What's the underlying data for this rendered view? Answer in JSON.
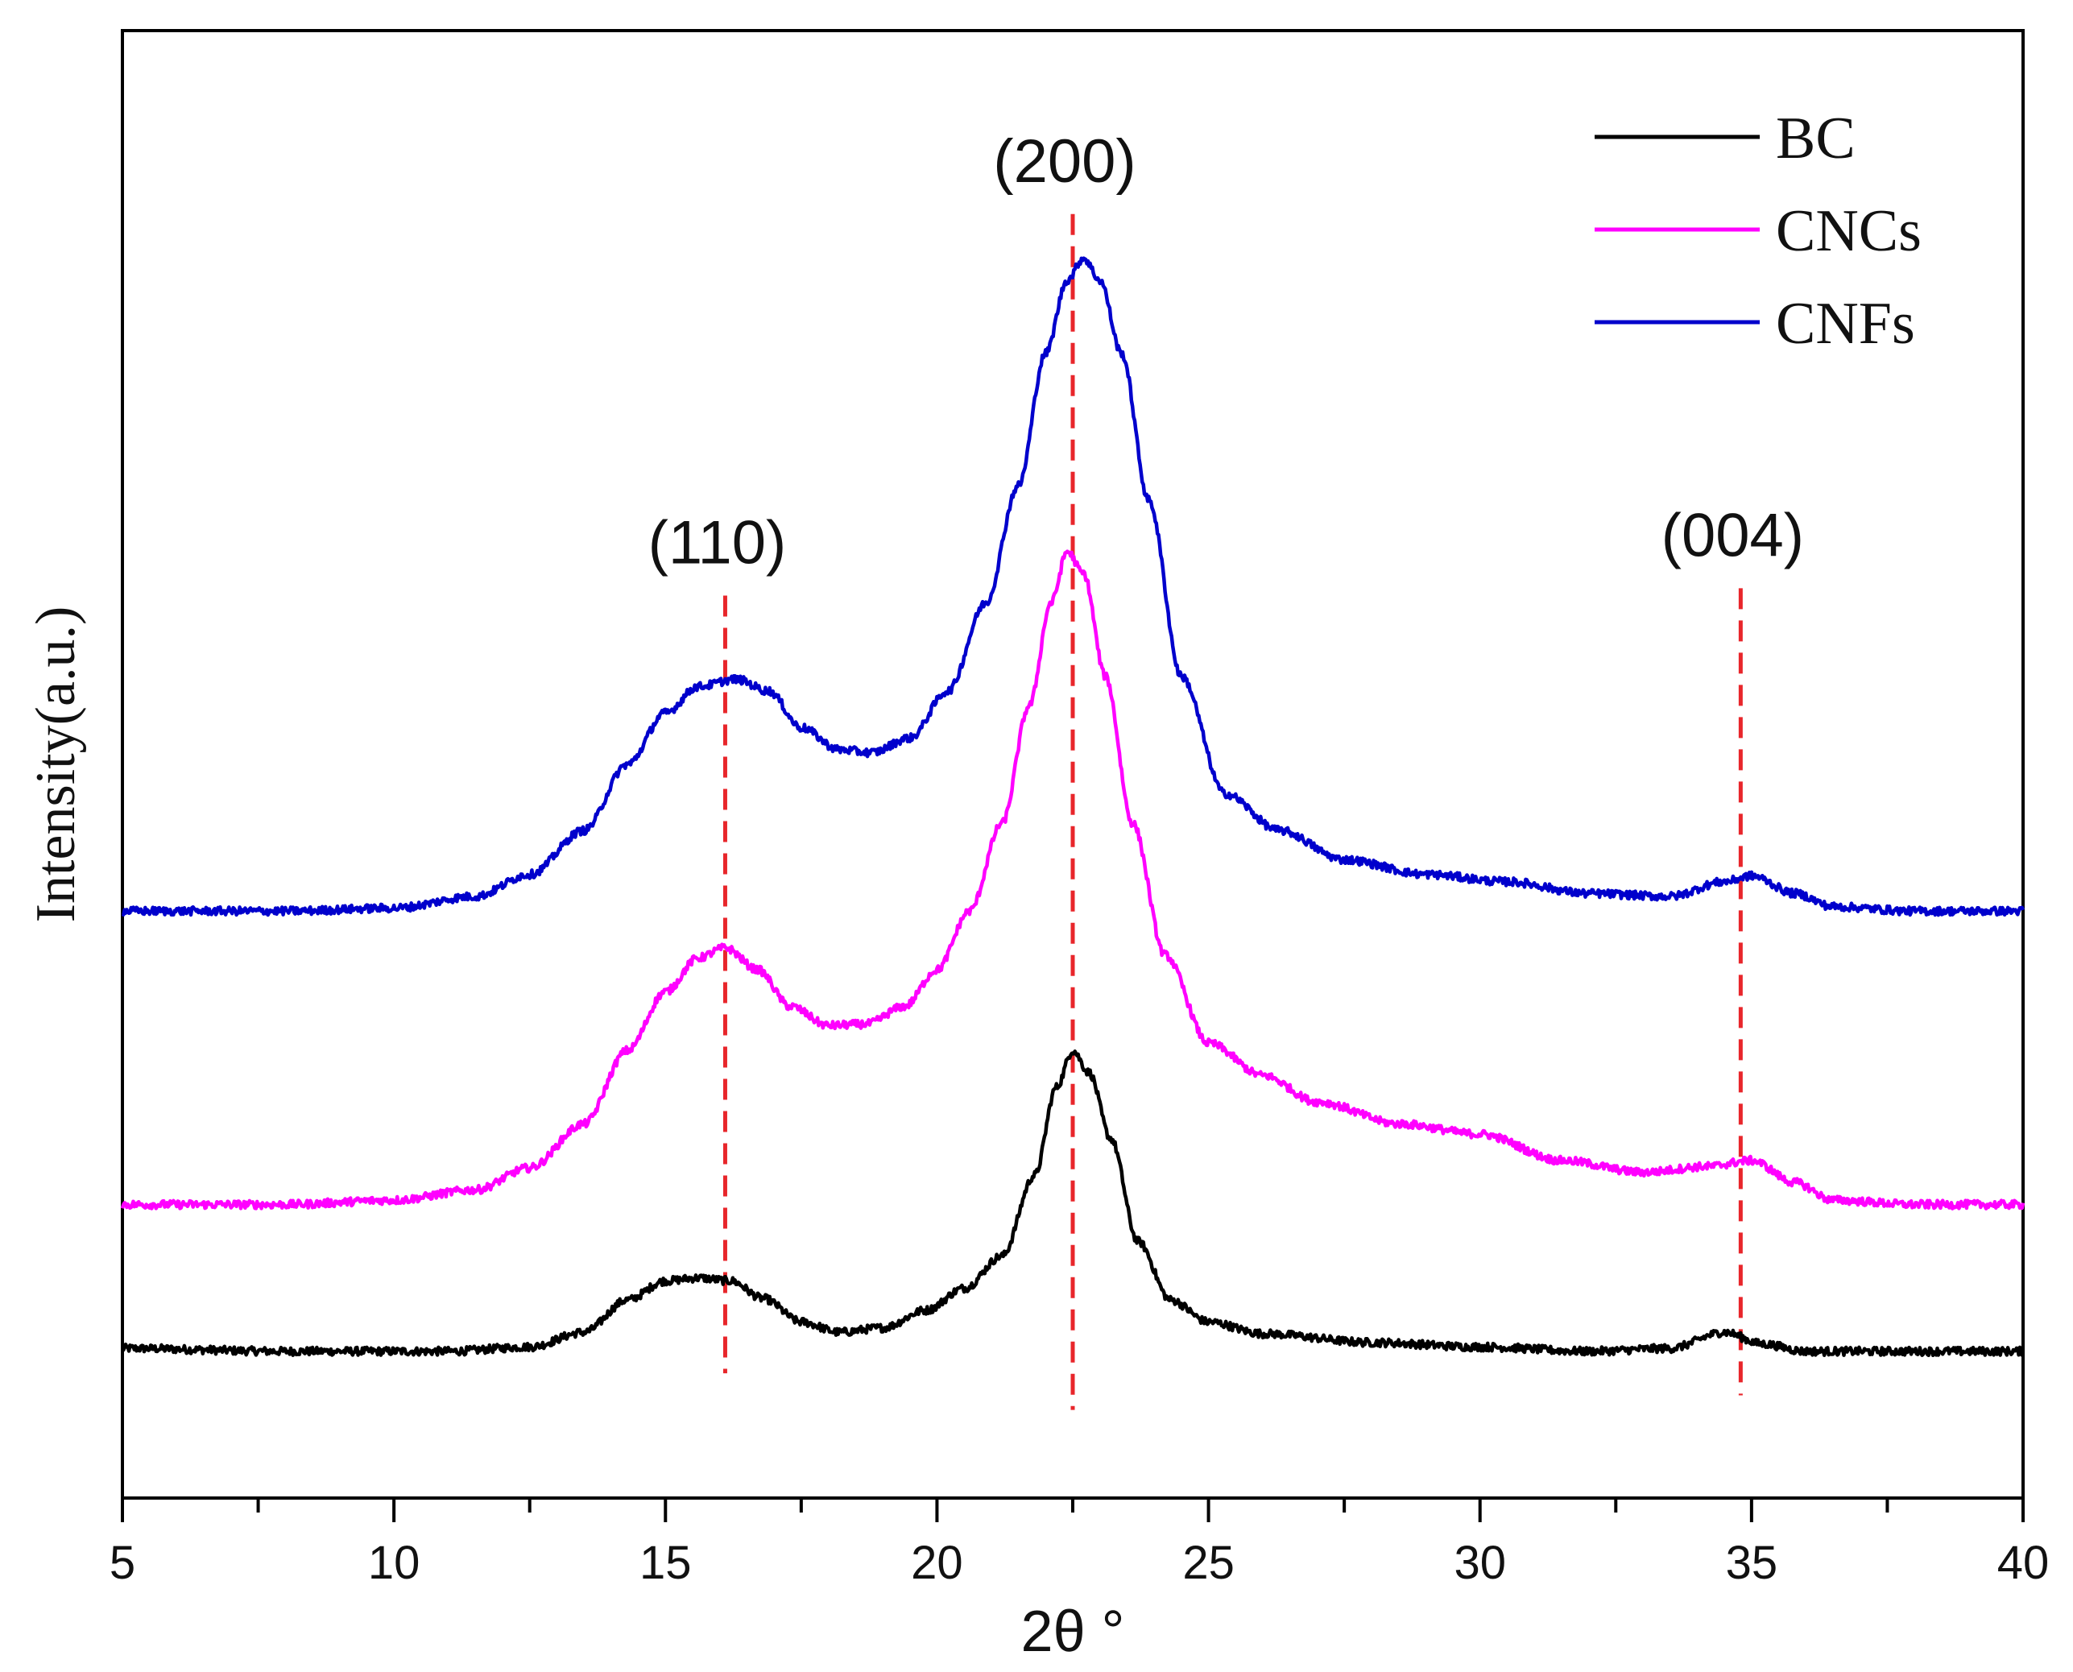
{
  "chart_data": {
    "type": "line",
    "title": "",
    "xlabel": "2θ °",
    "ylabel": "Intensity(a.u.)",
    "xlim": [
      5,
      40
    ],
    "ylim": [
      0,
      100
    ],
    "x_major_ticks": [
      5,
      10,
      15,
      20,
      25,
      30,
      35,
      40
    ],
    "x_tick_labels": [
      "5",
      "10",
      "15",
      "20",
      "25",
      "30",
      "35",
      "40"
    ],
    "x_minor_step": 2.5,
    "grid": false,
    "legend_position": "top-right",
    "series": [
      {
        "name": "BC",
        "color": "#000000",
        "x": [
          5,
          8,
          11,
          12.5,
          13.5,
          14.3,
          15,
          15.6,
          16.2,
          16.8,
          17.5,
          18.2,
          19,
          19.8,
          20.5,
          21.2,
          21.8,
          22.2,
          22.5,
          22.8,
          23.2,
          23.7,
          24.3,
          25,
          26,
          28,
          30,
          32,
          33.5,
          34.5,
          35.2,
          36,
          38,
          40
        ],
        "y": [
          10.2,
          10.0,
          10.0,
          10.3,
          11.3,
          13.5,
          14.8,
          15.0,
          14.8,
          13.6,
          12.0,
          11.3,
          11.6,
          12.8,
          14.3,
          16.5,
          22,
          28,
          30.5,
          29,
          24.5,
          17.5,
          13.5,
          12.0,
          11.2,
          10.6,
          10.3,
          10.0,
          10.2,
          11.3,
          10.5,
          10.0,
          10.0,
          10.0
        ]
      },
      {
        "name": "CNCs",
        "color": "#ff00ff",
        "x": [
          5,
          8,
          10,
          11.5,
          12.5,
          13.5,
          14.3,
          15,
          15.6,
          16.1,
          16.7,
          17.3,
          18,
          18.7,
          19.4,
          20,
          20.6,
          21.2,
          21.7,
          22.1,
          22.4,
          22.7,
          23.1,
          23.6,
          24.2,
          25,
          26,
          27,
          28.5,
          30,
          31.5,
          33,
          34.2,
          35,
          35.8,
          36.5,
          38,
          40
        ],
        "y": [
          20.0,
          20.0,
          20.3,
          21.0,
          22.5,
          25.5,
          30.5,
          34.5,
          36.8,
          37.5,
          36.0,
          33.5,
          32.2,
          32.3,
          33.5,
          36,
          40,
          46,
          54,
          61,
          64.5,
          63,
          56,
          46,
          37,
          31,
          28.8,
          27,
          25.5,
          24.8,
          23.0,
          22.2,
          22.6,
          23.0,
          21.5,
          20.3,
          20.0,
          20.0
        ]
      },
      {
        "name": "CNFs",
        "color": "#0000cc",
        "x": [
          5,
          8,
          10,
          11.5,
          12.5,
          13.5,
          14.3,
          15,
          15.6,
          16.3,
          16.9,
          17.5,
          18.2,
          18.8,
          19.5,
          20.2,
          20.9,
          21.5,
          22,
          22.4,
          22.7,
          23,
          23.4,
          23.9,
          24.5,
          25.3,
          26.3,
          27.5,
          29,
          30.5,
          32,
          33.5,
          34.5,
          35,
          35.8,
          36.5,
          38,
          40
        ],
        "y": [
          40.0,
          40.0,
          40.2,
          41.0,
          42.5,
          45.5,
          50,
          53.5,
          55.3,
          55.8,
          55.0,
          52.5,
          51.0,
          50.8,
          51.8,
          55,
          61,
          69,
          78,
          83,
          84.5,
          83,
          78,
          68,
          56,
          48,
          45.5,
          43.5,
          42.5,
          42.0,
          41.2,
          41.0,
          42.0,
          42.4,
          41.2,
          40.3,
          40.0,
          40.0
        ]
      }
    ],
    "peak_annotations": [
      {
        "label": "(110)",
        "x": 16.1,
        "y_top": 61.5,
        "y_bottom": 8.5,
        "color": "#e8262b"
      },
      {
        "label": "(200)",
        "x": 22.5,
        "y_top": 87.5,
        "y_bottom": 6.0,
        "color": "#e8262b"
      },
      {
        "label": "(004)",
        "x": 34.8,
        "y_top": 62.0,
        "y_bottom": 7.0,
        "color": "#e8262b"
      }
    ]
  }
}
